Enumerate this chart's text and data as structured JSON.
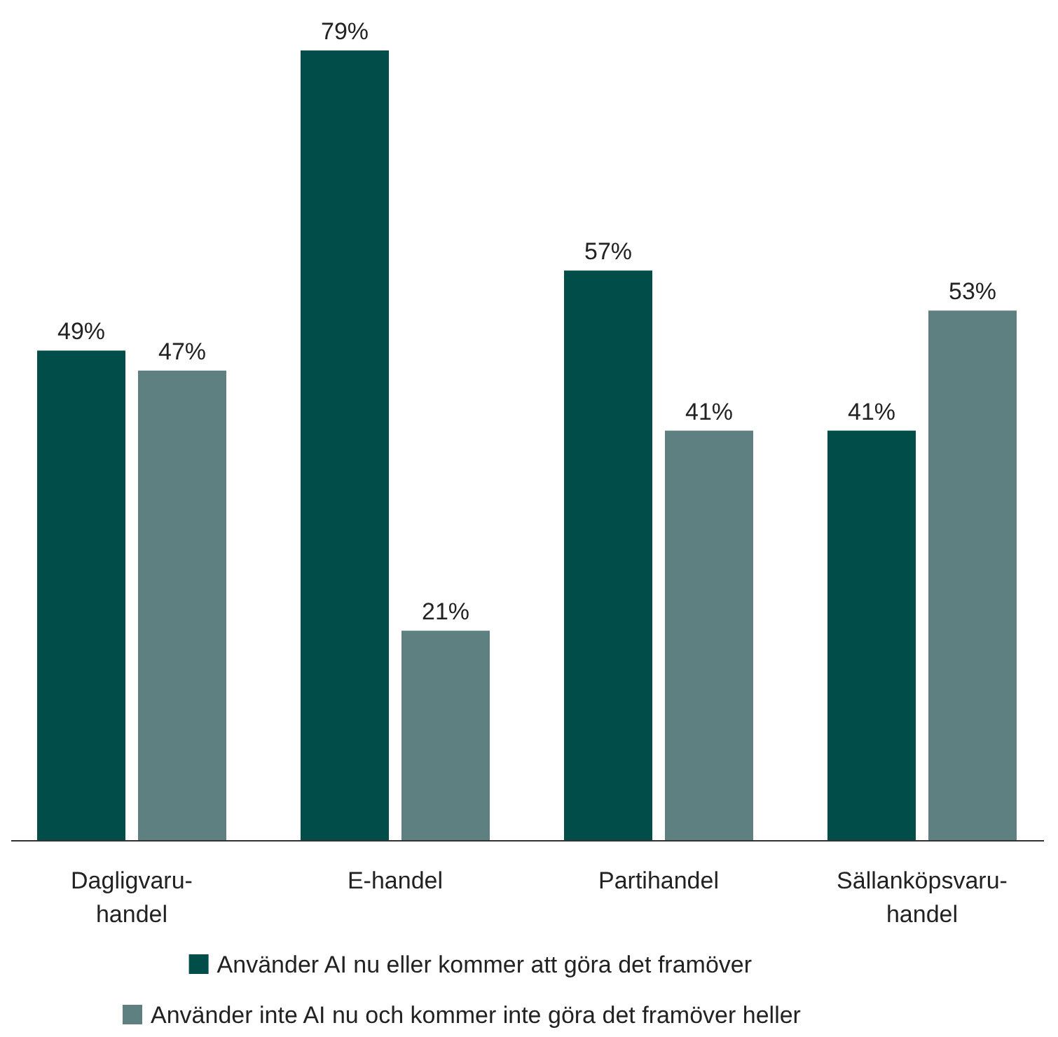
{
  "chart_data": {
    "type": "bar",
    "categories": [
      "Dagligvaru-\nhandel",
      "E-handel",
      "Partihandel",
      "Sällanköpsvaru-\nhandel"
    ],
    "series": [
      {
        "name": "Använder AI nu eller kommer att göra det framöver",
        "color": "#004d4a",
        "values": [
          49,
          79,
          57,
          41
        ],
        "value_labels": [
          "49%",
          "79%",
          "57%",
          "41%"
        ]
      },
      {
        "name": "Använder inte AI nu och kommer inte göra det framöver heller",
        "color": "#5f8080",
        "values": [
          47,
          21,
          41,
          53
        ],
        "value_labels": [
          "47%",
          "21%",
          "41%",
          "53%"
        ]
      }
    ],
    "legend": "bottom"
  }
}
